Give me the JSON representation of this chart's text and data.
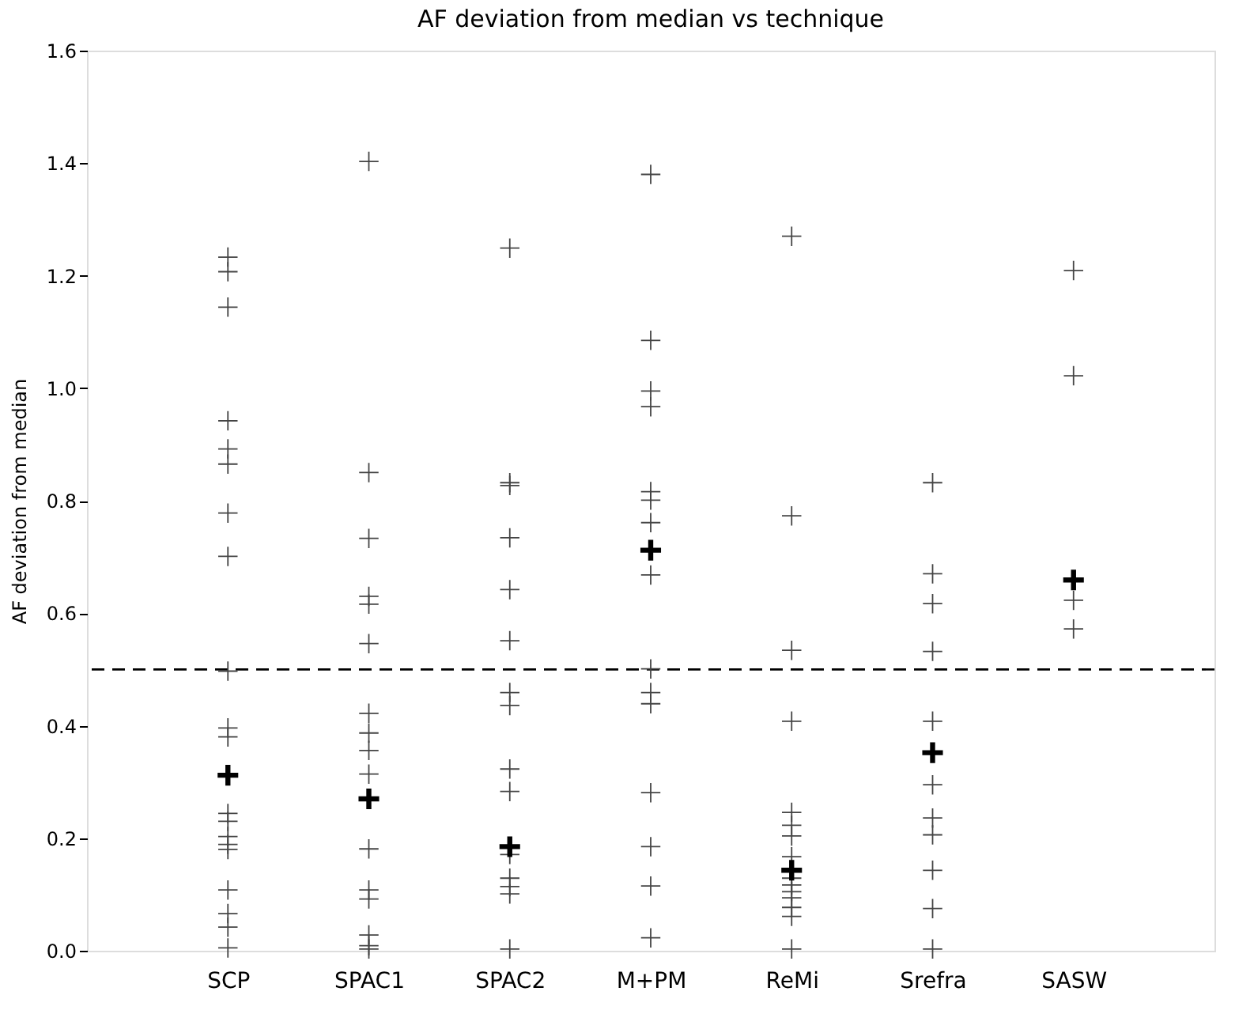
{
  "chart_data": {
    "type": "scatter",
    "title": "AF deviation from median vs technique",
    "ylabel": "AF deviation from median",
    "categories": [
      "SCP",
      "SPAC1",
      "SPAC2",
      "M+PM",
      "ReMi",
      "Srefra",
      "SASW"
    ],
    "series": [
      {
        "color": "#444444",
        "marker": "cross",
        "x": [
          "SCP",
          "SCP",
          "SCP",
          "SCP",
          "SCP",
          "SCP",
          "SCP",
          "SCP",
          "SCP",
          "SCP",
          "SCP",
          "SCP",
          "SCP",
          "SCP",
          "SCP",
          "SCP",
          "SCP",
          "SCP",
          "SCP",
          "SCP",
          "SPAC1",
          "SPAC1",
          "SPAC1",
          "SPAC1",
          "SPAC1",
          "SPAC1",
          "SPAC1",
          "SPAC1",
          "SPAC1",
          "SPAC1",
          "SPAC1",
          "SPAC1",
          "SPAC1",
          "SPAC1",
          "SPAC1",
          "SPAC1",
          "SPAC2",
          "SPAC2",
          "SPAC2",
          "SPAC2",
          "SPAC2",
          "SPAC2",
          "SPAC2",
          "SPAC2",
          "SPAC2",
          "SPAC2",
          "SPAC2",
          "SPAC2",
          "SPAC2",
          "SPAC2",
          "SPAC2",
          "M+PM",
          "M+PM",
          "M+PM",
          "M+PM",
          "M+PM",
          "M+PM",
          "M+PM",
          "M+PM",
          "M+PM",
          "M+PM",
          "M+PM",
          "M+PM",
          "M+PM",
          "M+PM",
          "M+PM",
          "ReMi",
          "ReMi",
          "ReMi",
          "ReMi",
          "ReMi",
          "ReMi",
          "ReMi",
          "ReMi",
          "ReMi",
          "ReMi",
          "ReMi",
          "ReMi",
          "ReMi",
          "ReMi",
          "ReMi",
          "Srefra",
          "Srefra",
          "Srefra",
          "Srefra",
          "Srefra",
          "Srefra",
          "Srefra",
          "Srefra",
          "Srefra",
          "Srefra",
          "Srefra",
          "SASW",
          "SASW",
          "SASW",
          "SASW"
        ],
        "values": [
          1.233,
          1.207,
          1.144,
          0.942,
          0.892,
          0.865,
          0.778,
          0.701,
          0.497,
          0.396,
          0.38,
          0.244,
          0.23,
          0.203,
          0.189,
          0.18,
          0.108,
          0.066,
          0.042,
          0.005,
          1.403,
          0.85,
          0.733,
          0.63,
          0.616,
          0.546,
          0.422,
          0.387,
          0.356,
          0.314,
          0.181,
          0.108,
          0.092,
          0.028,
          0.009,
          0.003,
          1.249,
          0.832,
          0.827,
          0.734,
          0.642,
          0.551,
          0.459,
          0.436,
          0.323,
          0.283,
          0.171,
          0.129,
          0.114,
          0.101,
          0.003,
          1.38,
          1.085,
          0.995,
          0.967,
          0.816,
          0.801,
          0.761,
          0.668,
          0.501,
          0.459,
          0.439,
          0.281,
          0.185,
          0.115,
          0.023,
          1.27,
          0.773,
          0.534,
          0.408,
          0.246,
          0.223,
          0.204,
          0.167,
          0.129,
          0.117,
          0.105,
          0.094,
          0.077,
          0.061,
          0.003,
          0.832,
          0.67,
          0.617,
          0.532,
          0.408,
          0.295,
          0.236,
          0.206,
          0.143,
          0.075,
          0.003,
          1.209,
          1.022,
          0.623,
          0.572
        ]
      },
      {
        "color": "#000000",
        "marker": "cross",
        "x": [
          "SCP",
          "SPAC1",
          "SPAC2",
          "M+PM",
          "ReMi",
          "Srefra",
          "SASW"
        ],
        "values": [
          0.312,
          0.27,
          0.185,
          0.712,
          0.143,
          0.352,
          0.659
        ]
      }
    ],
    "ylim": [
      0,
      1.6
    ],
    "yticks": [
      {
        "value": 0,
        "label": "0.0"
      },
      0.2,
      0.4,
      0.6,
      0.8,
      {
        "value": 1,
        "label": "1.0"
      },
      1.2,
      1.4,
      1.6
    ],
    "ref_lines": [
      {
        "axis": "y",
        "value": 0.5,
        "color": "#000000",
        "line_style": "dashed"
      }
    ],
    "grid": false
  }
}
